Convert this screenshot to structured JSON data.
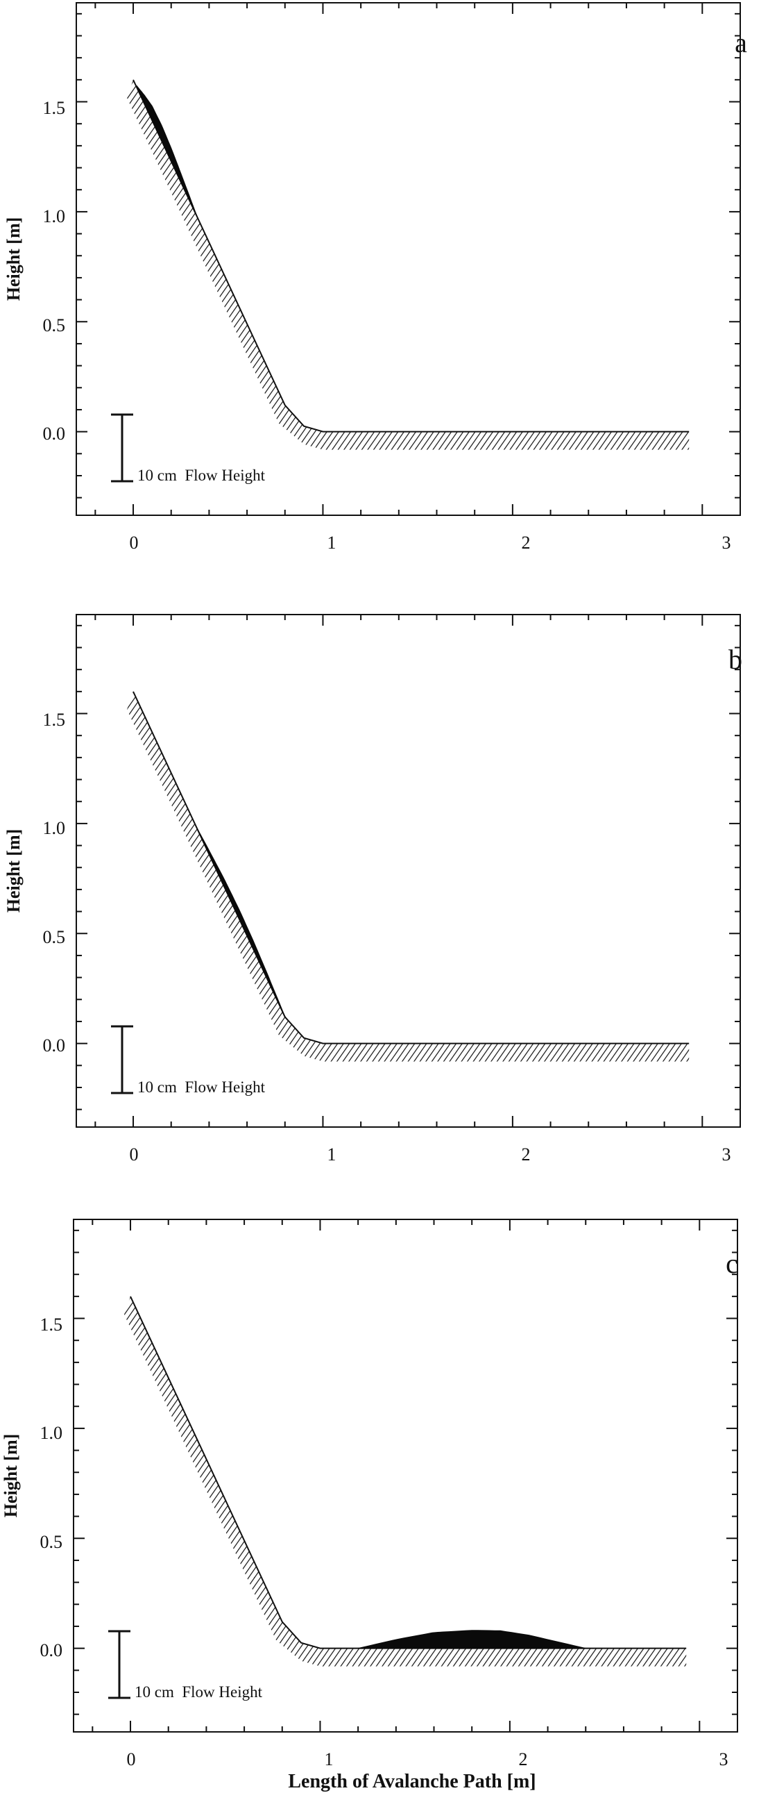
{
  "chart_data": [
    {
      "type": "area",
      "panel_label": "a",
      "ylabel": "Height [m]",
      "xlabel": "",
      "xlim": [
        -0.3,
        3.2
      ],
      "ylim": [
        -0.38,
        1.95
      ],
      "xticks": [
        "0",
        "1",
        "2",
        "3"
      ],
      "yticks": [
        "0.0",
        "0.5",
        "1.0",
        "1.5"
      ],
      "scale_bar_label": "10 cm  Flow Height",
      "series": [
        {
          "role": "terrain",
          "x": [
            0.0,
            0.2,
            0.4,
            0.6,
            0.8,
            0.9,
            1.0,
            1.1,
            1.5,
            2.0,
            2.5,
            2.93
          ],
          "y": [
            1.6,
            1.23,
            0.86,
            0.49,
            0.12,
            0.025,
            0.0,
            0.0,
            0.0,
            0.0,
            0.0,
            0.0
          ]
        },
        {
          "role": "flow_height",
          "x": [
            0.02,
            0.06,
            0.1,
            0.15,
            0.2,
            0.25,
            0.3,
            0.34
          ],
          "thickness_m": [
            0.008,
            0.04,
            0.065,
            0.07,
            0.06,
            0.04,
            0.018,
            0.0
          ]
        }
      ]
    },
    {
      "type": "area",
      "panel_label": "b",
      "ylabel": "Height [m]",
      "xlabel": "",
      "xlim": [
        -0.3,
        3.2
      ],
      "ylim": [
        -0.38,
        1.95
      ],
      "xticks": [
        "0",
        "1",
        "2",
        "3"
      ],
      "yticks": [
        "0.0",
        "0.5",
        "1.0",
        "1.5"
      ],
      "scale_bar_label": "10 cm  Flow Height",
      "series": [
        {
          "role": "terrain",
          "x": [
            0.0,
            0.2,
            0.4,
            0.6,
            0.8,
            0.9,
            1.0,
            1.1,
            1.5,
            2.0,
            2.5,
            2.93
          ],
          "y": [
            1.6,
            1.23,
            0.86,
            0.49,
            0.12,
            0.025,
            0.0,
            0.0,
            0.0,
            0.0,
            0.0,
            0.0
          ]
        },
        {
          "role": "flow_height",
          "x": [
            0.33,
            0.4,
            0.48,
            0.56,
            0.63,
            0.7,
            0.76,
            0.81
          ],
          "thickness_m": [
            0.0,
            0.018,
            0.035,
            0.042,
            0.038,
            0.026,
            0.012,
            0.0
          ]
        }
      ]
    },
    {
      "type": "area",
      "panel_label": "c",
      "ylabel": "Height [m]",
      "xlabel": "Length of Avalanche Path [m]",
      "xlim": [
        -0.3,
        3.2
      ],
      "ylim": [
        -0.38,
        1.95
      ],
      "xticks": [
        "0",
        "1",
        "2",
        "3"
      ],
      "yticks": [
        "0.0",
        "0.5",
        "1.0",
        "1.5"
      ],
      "scale_bar_label": "10 cm  Flow Height",
      "series": [
        {
          "role": "terrain",
          "x": [
            0.0,
            0.2,
            0.4,
            0.6,
            0.8,
            0.9,
            1.0,
            1.1,
            1.5,
            2.0,
            2.5,
            2.93
          ],
          "y": [
            1.6,
            1.23,
            0.86,
            0.49,
            0.12,
            0.025,
            0.0,
            0.0,
            0.0,
            0.0,
            0.0,
            0.0
          ]
        },
        {
          "role": "flow_height",
          "x": [
            1.2,
            1.4,
            1.6,
            1.8,
            1.95,
            2.1,
            2.25,
            2.4
          ],
          "thickness_m": [
            0.0,
            0.04,
            0.072,
            0.082,
            0.08,
            0.06,
            0.03,
            0.0
          ]
        }
      ]
    }
  ]
}
